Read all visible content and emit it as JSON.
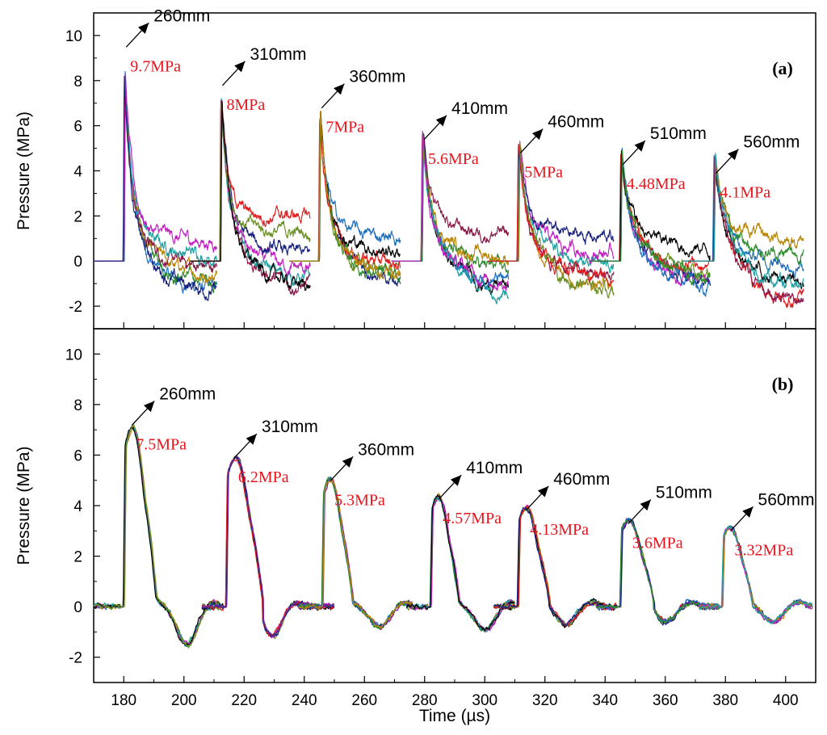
{
  "chart_data": [
    {
      "type": "line",
      "panel_label": "(a)",
      "ylabel": "Pressure (MPa)",
      "xlabel": "",
      "xlim": [
        170,
        410
      ],
      "ylim": [
        -3,
        11
      ],
      "xticks": [
        180,
        200,
        220,
        240,
        260,
        280,
        300,
        320,
        340,
        360,
        380,
        400
      ],
      "xtick_labels": [
        "180",
        "200",
        "220",
        "240",
        "260",
        "280",
        "300",
        "320",
        "340",
        "360",
        "380",
        "400"
      ],
      "yticks": [
        -2,
        0,
        2,
        4,
        6,
        8,
        10
      ],
      "ytick_labels": [
        "-2",
        "0",
        "2",
        "4",
        "6",
        "8",
        "10"
      ],
      "grid": false,
      "pulse_shape": "sharp",
      "series_colors": [
        "#1f6fbf",
        "#2e8b2e",
        "#b8860b",
        "#8b1a4a",
        "#20a0a0",
        "#c020c0",
        "#1a237e",
        "#6b8e23",
        "#e01e1e",
        "#000000"
      ],
      "pulses": [
        {
          "distance": "260mm",
          "peak": "9.7MPa",
          "peak_value": 9.7,
          "arrival_time": 180,
          "end_time": 211,
          "tail_values": [
            -1.4,
            -1.0,
            -0.7,
            -0.4,
            0.2,
            0.8
          ]
        },
        {
          "distance": "310mm",
          "peak": "8MPa",
          "peak_value": 8.0,
          "arrival_time": 212,
          "end_time": 242,
          "tail_values": [
            -1.2,
            -0.9,
            -0.5,
            0.2,
            1.2,
            2.0
          ]
        },
        {
          "distance": "360mm",
          "peak": "7MPa",
          "peak_value": 7.0,
          "arrival_time": 245,
          "end_time": 272,
          "tail_values": [
            -1.0,
            -0.7,
            -0.3,
            0.3,
            1.0
          ]
        },
        {
          "distance": "410mm",
          "peak": "5.6MPa",
          "peak_value": 5.6,
          "arrival_time": 279,
          "end_time": 308,
          "tail_values": [
            -1.3,
            -1.0,
            -0.5,
            0.1,
            1.2
          ]
        },
        {
          "distance": "460mm",
          "peak": "5MPa",
          "peak_value": 5.0,
          "arrival_time": 311,
          "end_time": 343,
          "tail_values": [
            -1.3,
            -0.8,
            -0.3,
            0.3,
            1.0
          ]
        },
        {
          "distance": "510mm",
          "peak": "4.48MPa",
          "peak_value": 4.48,
          "arrival_time": 345,
          "end_time": 375,
          "tail_values": [
            -1.1,
            -0.8,
            -0.6,
            -0.4,
            0.5
          ]
        },
        {
          "distance": "560mm",
          "peak": "4.1MPa",
          "peak_value": 4.1,
          "arrival_time": 376,
          "end_time": 406,
          "tail_values": [
            -1.8,
            -1.1,
            -0.3,
            0.2,
            0.9
          ]
        }
      ]
    },
    {
      "type": "line",
      "panel_label": "(b)",
      "ylabel": "Pressure (MPa)",
      "xlabel": "Time (µs)",
      "xlim": [
        170,
        410
      ],
      "ylim": [
        -3,
        11
      ],
      "xticks": [
        180,
        200,
        220,
        240,
        260,
        280,
        300,
        320,
        340,
        360,
        380,
        400
      ],
      "xtick_labels": [
        "180",
        "200",
        "220",
        "240",
        "260",
        "280",
        "300",
        "320",
        "340",
        "360",
        "380",
        "400"
      ],
      "yticks": [
        -2,
        0,
        2,
        4,
        6,
        8,
        10
      ],
      "ytick_labels": [
        "-2",
        "0",
        "2",
        "4",
        "6",
        "8",
        "10"
      ],
      "grid": false,
      "pulse_shape": "rounded",
      "series_colors": [
        "#1f6fbf",
        "#2e8b2e",
        "#b8860b",
        "#c020c0",
        "#20a0a0",
        "#000000",
        "#6b8e23",
        "#e01e1e",
        "#1a237e",
        "#7b1fa2"
      ],
      "pulses": [
        {
          "distance": "260mm",
          "peak": "7.5MPa",
          "peak_value": 7.5,
          "arrival_time": 180,
          "end_time": 212,
          "undershoot": -1.5,
          "undershoot_time": 201
        },
        {
          "distance": "310mm",
          "peak": "6.2MPa",
          "peak_value": 6.2,
          "arrival_time": 214,
          "end_time": 250,
          "undershoot": -1.2,
          "undershoot_time": 229
        },
        {
          "distance": "360mm",
          "peak": "5.3MPa",
          "peak_value": 5.3,
          "arrival_time": 246,
          "end_time": 276,
          "undershoot": -0.8,
          "undershoot_time": 265
        },
        {
          "distance": "410mm",
          "peak": "4.57MPa",
          "peak_value": 4.57,
          "arrival_time": 282,
          "end_time": 310,
          "undershoot": -0.9,
          "undershoot_time": 300
        },
        {
          "distance": "460mm",
          "peak": "4.13MPa",
          "peak_value": 4.13,
          "arrival_time": 311,
          "end_time": 342,
          "undershoot": -0.7,
          "undershoot_time": 327
        },
        {
          "distance": "510mm",
          "peak": "3.6MPa",
          "peak_value": 3.6,
          "arrival_time": 345,
          "end_time": 378,
          "undershoot": -0.6,
          "undershoot_time": 360
        },
        {
          "distance": "560mm",
          "peak": "3.32MPa",
          "peak_value": 3.32,
          "arrival_time": 379,
          "end_time": 409,
          "undershoot": -0.6,
          "undershoot_time": 396
        }
      ]
    }
  ]
}
